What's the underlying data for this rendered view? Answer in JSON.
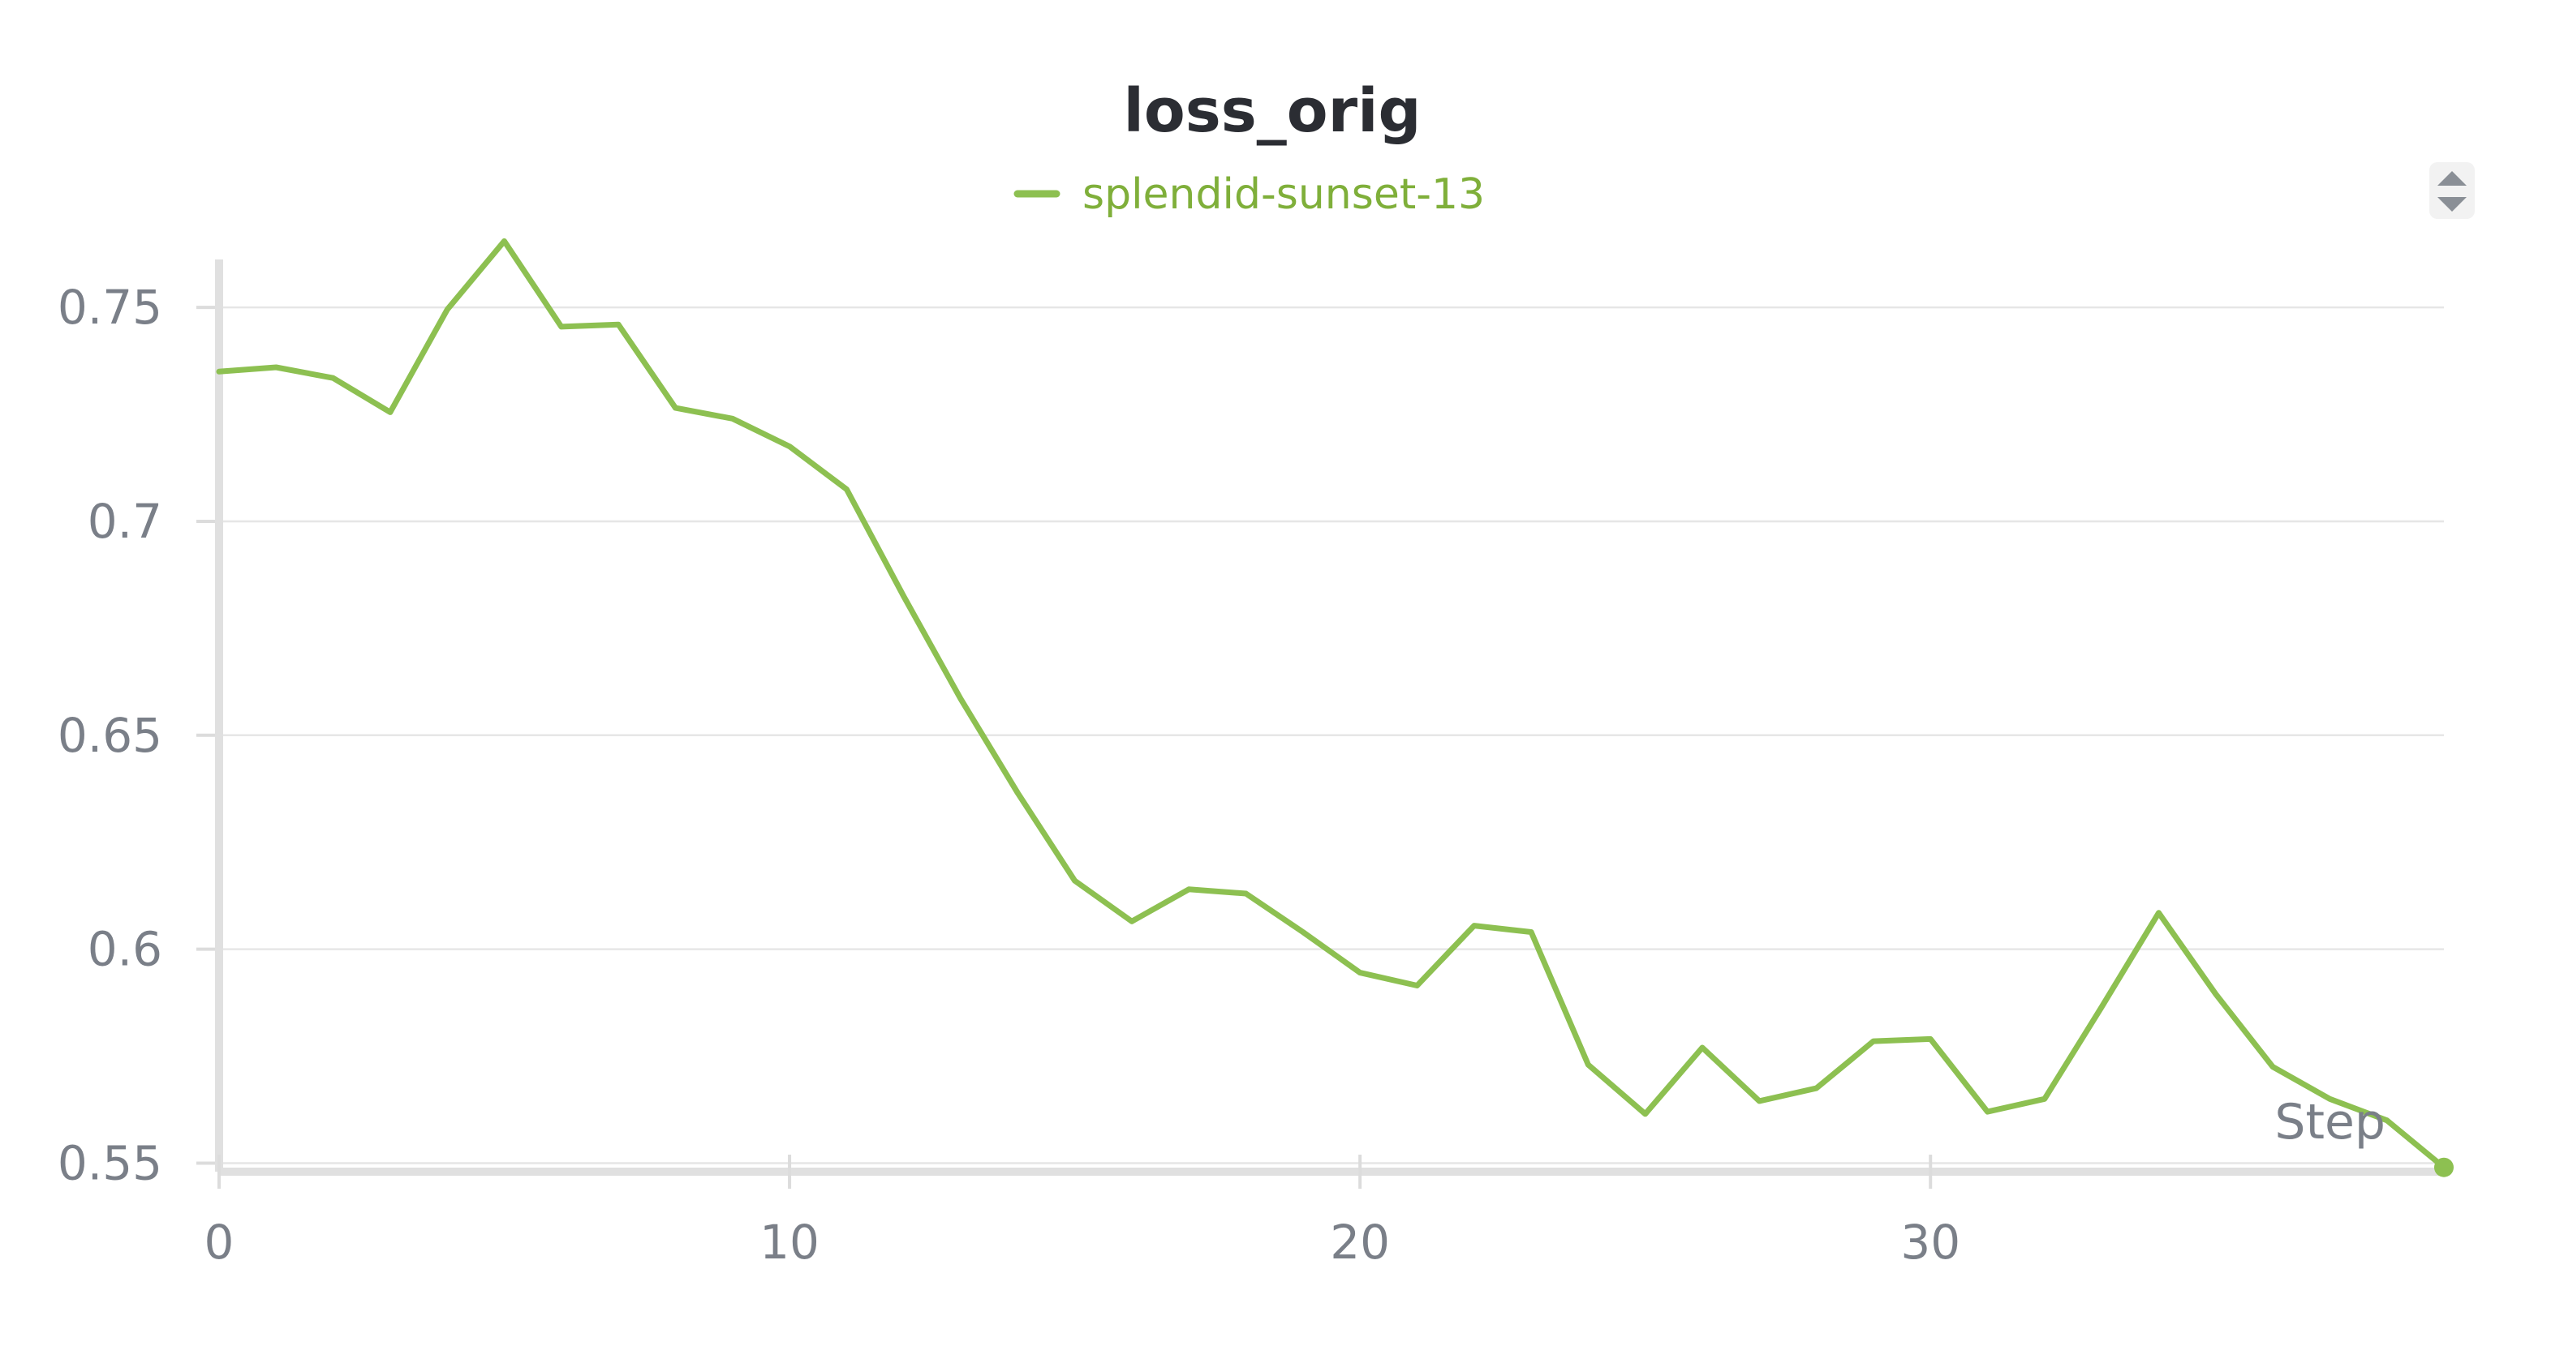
{
  "chart_data": {
    "type": "line",
    "title": "loss_orig",
    "xlabel": "Step",
    "ylabel": "",
    "xlim": [
      0,
      39
    ],
    "ylim": [
      0.548,
      0.765
    ],
    "xticks": [
      0,
      10,
      20,
      30
    ],
    "yticks": [
      0.55,
      0.6,
      0.65,
      0.7,
      0.75
    ],
    "ytick_labels": [
      "0.55",
      "0.6",
      "0.65",
      "0.7",
      "0.75"
    ],
    "xtick_labels": [
      "0",
      "10",
      "20",
      "30"
    ],
    "grid": true,
    "legend_position": "top-center",
    "series": [
      {
        "name": "splendid-sunset-13",
        "color": "#8dc051",
        "x": [
          0,
          1,
          2,
          3,
          4,
          5,
          6,
          7,
          8,
          9,
          10,
          11,
          12,
          13,
          14,
          15,
          16,
          17,
          18,
          19,
          20,
          21,
          22,
          23,
          24,
          25,
          26,
          27,
          28,
          29,
          30,
          31,
          32,
          33,
          34,
          35,
          36,
          37,
          38,
          39
        ],
        "values": [
          0.735,
          0.736,
          0.7335,
          0.7255,
          0.7495,
          0.7655,
          0.7455,
          0.746,
          0.7265,
          0.724,
          0.7175,
          0.7075,
          0.6825,
          0.6585,
          0.6365,
          0.616,
          0.6065,
          0.614,
          0.613,
          0.604,
          0.5945,
          0.5915,
          0.6055,
          0.604,
          0.573,
          0.5615,
          0.577,
          0.5645,
          0.5675,
          0.5785,
          0.579,
          0.562,
          0.565,
          0.5865,
          0.6085,
          0.5895,
          0.5725,
          0.565,
          0.56,
          0.549
        ]
      }
    ]
  },
  "controls": {
    "sort_icon": "sort-up-down-icon"
  }
}
